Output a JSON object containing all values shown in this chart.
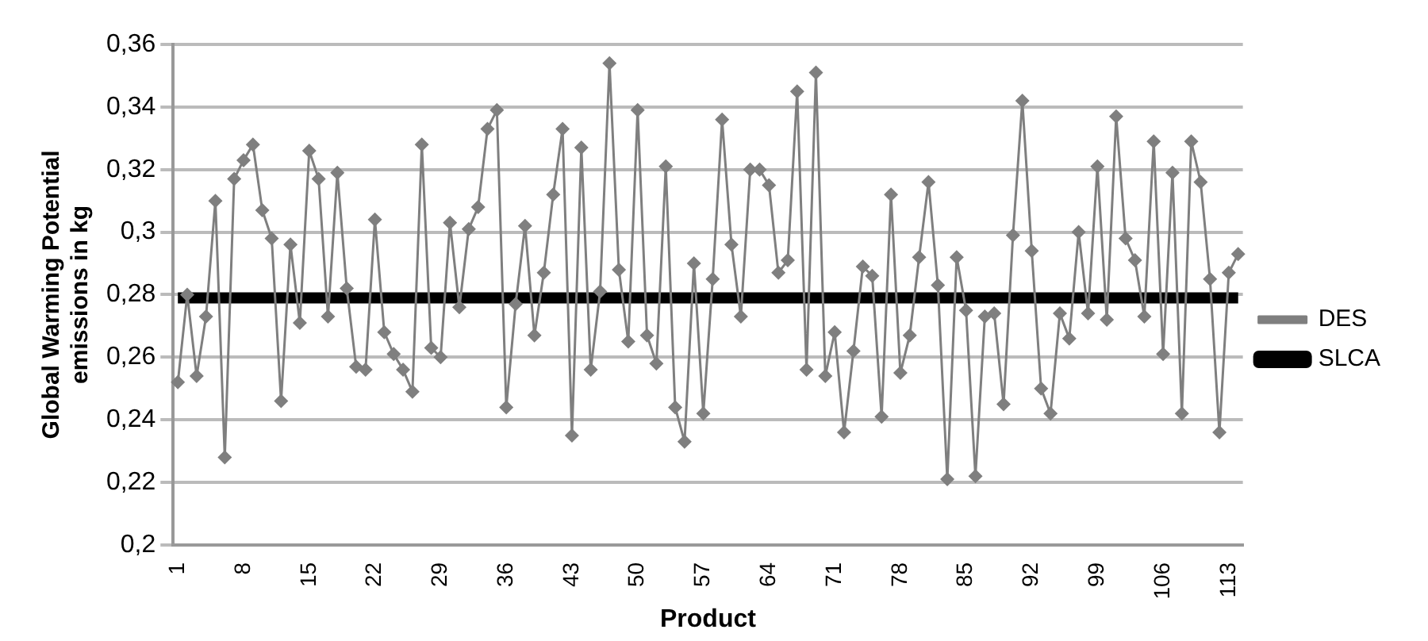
{
  "chart_data": {
    "type": "line",
    "xlabel": "Product",
    "ylabel": "Global Warming Potential emissions in kg",
    "categories": [
      "1",
      null,
      null,
      null,
      null,
      null,
      null,
      "8",
      null,
      null,
      null,
      null,
      null,
      null,
      "15",
      null,
      null,
      null,
      null,
      null,
      null,
      "22",
      null,
      null,
      null,
      null,
      null,
      null,
      "29",
      null,
      null,
      null,
      null,
      null,
      null,
      "36",
      null,
      null,
      null,
      null,
      null,
      null,
      "43",
      null,
      null,
      null,
      null,
      null,
      null,
      "50",
      null,
      null,
      null,
      null,
      null,
      null,
      "57",
      null,
      null,
      null,
      null,
      null,
      null,
      "64",
      null,
      null,
      null,
      null,
      null,
      null,
      "71",
      null,
      null,
      null,
      null,
      null,
      null,
      "78",
      null,
      null,
      null,
      null,
      null,
      null,
      "85",
      null,
      null,
      null,
      null,
      null,
      null,
      "92",
      null,
      null,
      null,
      null,
      null,
      null,
      "99",
      null,
      null,
      null,
      null,
      null,
      null,
      "106",
      null,
      null,
      null,
      null,
      null,
      null,
      "113",
      null
    ],
    "series": [
      {
        "name": "DES",
        "color": "#7f7f7f",
        "marker": "diamond",
        "values": [
          0.252,
          0.28,
          0.254,
          0.273,
          0.31,
          0.228,
          0.317,
          0.323,
          0.328,
          0.307,
          0.298,
          0.246,
          0.296,
          0.271,
          0.326,
          0.317,
          0.273,
          0.319,
          0.282,
          0.257,
          0.256,
          0.304,
          0.268,
          0.261,
          0.256,
          0.249,
          0.328,
          0.263,
          0.26,
          0.303,
          0.276,
          0.301,
          0.308,
          0.333,
          0.339,
          0.244,
          0.277,
          0.302,
          0.267,
          0.287,
          0.312,
          0.333,
          0.235,
          0.327,
          0.256,
          0.281,
          0.354,
          0.288,
          0.265,
          0.339,
          0.267,
          0.258,
          0.321,
          0.244,
          0.233,
          0.29,
          0.242,
          0.285,
          0.336,
          0.296,
          0.273,
          0.32,
          0.32,
          0.315,
          0.287,
          0.291,
          0.345,
          0.256,
          0.351,
          0.254,
          0.268,
          0.236,
          0.262,
          0.289,
          0.286,
          0.241,
          0.312,
          0.255,
          0.267,
          0.292,
          0.316,
          0.283,
          0.221,
          0.292,
          0.275,
          0.222,
          0.273,
          0.274,
          0.245,
          0.299,
          0.342,
          0.294,
          0.25,
          0.242,
          0.274,
          0.266,
          0.3,
          0.274,
          0.321,
          0.272,
          0.337,
          0.298,
          0.291,
          0.273,
          0.329,
          0.261,
          0.319,
          0.242,
          0.329,
          0.316,
          0.285,
          0.236,
          0.287,
          0.293
        ]
      },
      {
        "name": "SLCA",
        "color": "#000000",
        "marker": "none",
        "values": [
          0.279,
          0.279,
          0.279,
          0.279,
          0.279,
          0.279,
          0.279,
          0.279,
          0.279,
          0.279,
          0.279,
          0.279,
          0.279,
          0.279,
          0.279,
          0.279,
          0.279,
          0.279,
          0.279,
          0.279,
          0.279,
          0.279,
          0.279,
          0.279,
          0.279,
          0.279,
          0.279,
          0.279,
          0.279,
          0.279,
          0.279,
          0.279,
          0.279,
          0.279,
          0.279,
          0.279,
          0.279,
          0.279,
          0.279,
          0.279,
          0.279,
          0.279,
          0.279,
          0.279,
          0.279,
          0.279,
          0.279,
          0.279,
          0.279,
          0.279,
          0.279,
          0.279,
          0.279,
          0.279,
          0.279,
          0.279,
          0.279,
          0.279,
          0.279,
          0.279,
          0.279,
          0.279,
          0.279,
          0.279,
          0.279,
          0.279,
          0.279,
          0.279,
          0.279,
          0.279,
          0.279,
          0.279,
          0.279,
          0.279,
          0.279,
          0.279,
          0.279,
          0.279,
          0.279,
          0.279,
          0.279,
          0.279,
          0.279,
          0.279,
          0.279,
          0.279,
          0.279,
          0.279,
          0.279,
          0.279,
          0.279,
          0.279,
          0.279,
          0.279,
          0.279,
          0.279,
          0.279,
          0.279,
          0.279,
          0.279,
          0.279,
          0.279,
          0.279,
          0.279,
          0.279,
          0.279,
          0.279,
          0.279,
          0.279,
          0.279,
          0.279,
          0.279,
          0.279,
          0.279
        ]
      }
    ],
    "ylim": [
      0.2,
      0.36
    ],
    "yticks": [
      {
        "value": 0.2,
        "label": "0,2"
      },
      {
        "value": 0.22,
        "label": "0,22"
      },
      {
        "value": 0.24,
        "label": "0,24"
      },
      {
        "value": 0.26,
        "label": "0,26"
      },
      {
        "value": 0.28,
        "label": "0,28"
      },
      {
        "value": 0.3,
        "label": "0,3"
      },
      {
        "value": 0.32,
        "label": "0,32"
      },
      {
        "value": 0.34,
        "label": "0,34"
      },
      {
        "value": 0.36,
        "label": "0,36"
      }
    ],
    "grid": "y",
    "legend": "right",
    "line_style": "solid"
  }
}
